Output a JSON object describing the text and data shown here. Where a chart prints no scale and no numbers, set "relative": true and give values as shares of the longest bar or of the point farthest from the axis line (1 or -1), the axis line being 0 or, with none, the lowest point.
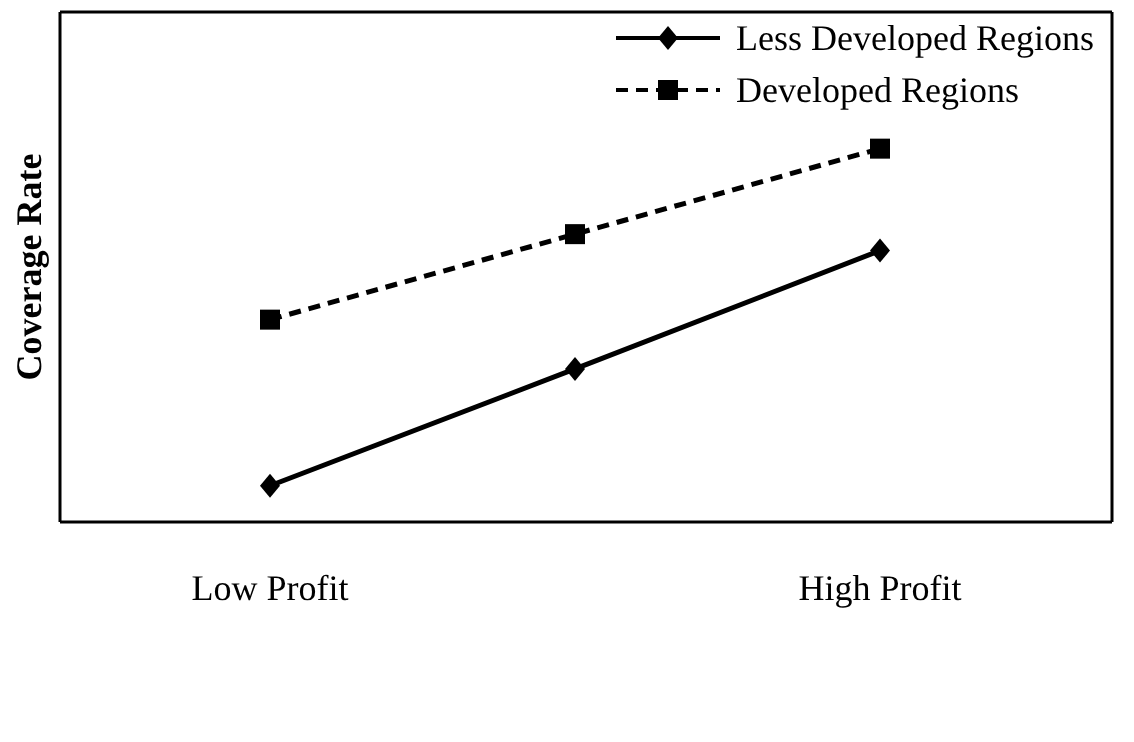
{
  "chart_data": {
    "type": "line",
    "relative": true,
    "ylabel": "Coverage Rate",
    "categories": [
      "Low Profit",
      null,
      "High Profit"
    ],
    "series": [
      {
        "name": "Less Developed Regions",
        "color": "#000000",
        "values": [
          0.097,
          0.41,
          0.727
        ],
        "marker": "diamond",
        "line_style": "solid"
      },
      {
        "name": "Developed Regions",
        "color": "#000000",
        "values": [
          0.542,
          0.771,
          1
        ],
        "marker": "square",
        "line_style": "dashed"
      }
    ],
    "legend": "top right",
    "grid": false
  }
}
